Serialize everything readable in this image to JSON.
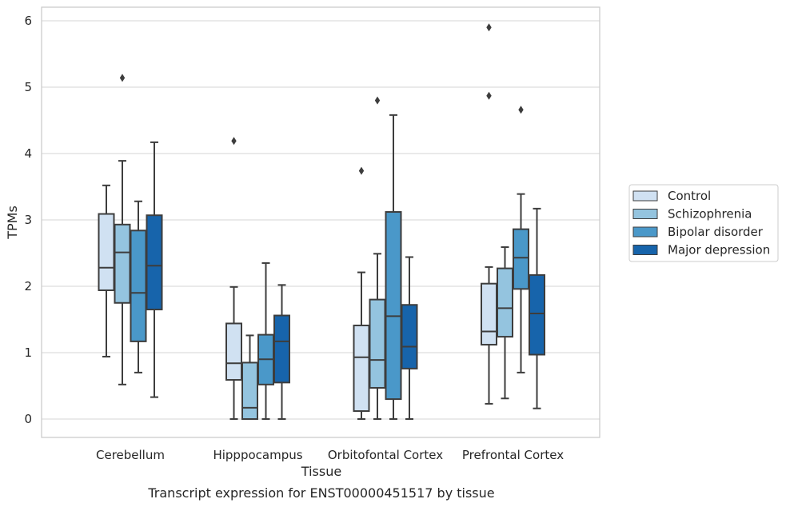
{
  "chart_data": {
    "type": "box",
    "title": "",
    "caption": "Transcript expression for ENST00000451517 by tissue",
    "xlabel": "Tissue",
    "ylabel": "TPMs",
    "ylim": [
      -0.28,
      6.2
    ],
    "yticks": [
      0,
      1,
      2,
      3,
      4,
      5,
      6
    ],
    "grid": "y",
    "legend_position": "right",
    "categories": [
      "Cerebellum",
      "Hipppocampus",
      "Orbitofontal Cortex",
      "Prefrontal Cortex"
    ],
    "series": [
      {
        "name": "Control",
        "color": "#d0e1f2",
        "boxes": [
          {
            "whisker_low": 0.94,
            "q1": 1.94,
            "median": 2.28,
            "q3": 3.09,
            "whisker_high": 3.52,
            "outliers": []
          },
          {
            "whisker_low": 0.0,
            "q1": 0.59,
            "median": 0.84,
            "q3": 1.44,
            "whisker_high": 1.99,
            "outliers": [
              4.19
            ]
          },
          {
            "whisker_low": 0.0,
            "q1": 0.12,
            "median": 0.93,
            "q3": 1.41,
            "whisker_high": 2.21,
            "outliers": [
              3.74
            ]
          },
          {
            "whisker_low": 0.23,
            "q1": 1.12,
            "median": 1.32,
            "q3": 2.04,
            "whisker_high": 2.29,
            "outliers": [
              4.87,
              5.9
            ]
          }
        ]
      },
      {
        "name": "Schizophrenia",
        "color": "#94c4df",
        "boxes": [
          {
            "whisker_low": 0.52,
            "q1": 1.75,
            "median": 2.51,
            "q3": 2.93,
            "whisker_high": 3.89,
            "outliers": [
              5.14
            ]
          },
          {
            "whisker_low": 0.0,
            "q1": 0.0,
            "median": 0.17,
            "q3": 0.85,
            "whisker_high": 1.26,
            "outliers": []
          },
          {
            "whisker_low": 0.0,
            "q1": 0.47,
            "median": 0.89,
            "q3": 1.8,
            "whisker_high": 2.49,
            "outliers": [
              4.8
            ]
          },
          {
            "whisker_low": 0.31,
            "q1": 1.24,
            "median": 1.67,
            "q3": 2.27,
            "whisker_high": 2.59,
            "outliers": []
          }
        ]
      },
      {
        "name": "Bipolar disorder",
        "color": "#4a98c9",
        "boxes": [
          {
            "whisker_low": 0.7,
            "q1": 1.17,
            "median": 1.9,
            "q3": 2.84,
            "whisker_high": 3.28,
            "outliers": []
          },
          {
            "whisker_low": 0.0,
            "q1": 0.52,
            "median": 0.9,
            "q3": 1.27,
            "whisker_high": 2.35,
            "outliers": []
          },
          {
            "whisker_low": 0.0,
            "q1": 0.3,
            "median": 1.55,
            "q3": 3.12,
            "whisker_high": 4.58,
            "outliers": []
          },
          {
            "whisker_low": 0.7,
            "q1": 1.96,
            "median": 2.43,
            "q3": 2.86,
            "whisker_high": 3.39,
            "outliers": [
              4.66
            ]
          }
        ]
      },
      {
        "name": "Major depression",
        "color": "#1764ab",
        "boxes": [
          {
            "whisker_low": 0.33,
            "q1": 1.65,
            "median": 2.31,
            "q3": 3.07,
            "whisker_high": 4.17,
            "outliers": []
          },
          {
            "whisker_low": 0.0,
            "q1": 0.55,
            "median": 1.17,
            "q3": 1.56,
            "whisker_high": 2.02,
            "outliers": []
          },
          {
            "whisker_low": 0.0,
            "q1": 0.76,
            "median": 1.09,
            "q3": 1.72,
            "whisker_high": 2.44,
            "outliers": []
          },
          {
            "whisker_low": 0.16,
            "q1": 0.97,
            "median": 1.59,
            "q3": 2.17,
            "whisker_high": 3.17,
            "outliers": []
          }
        ]
      }
    ]
  }
}
